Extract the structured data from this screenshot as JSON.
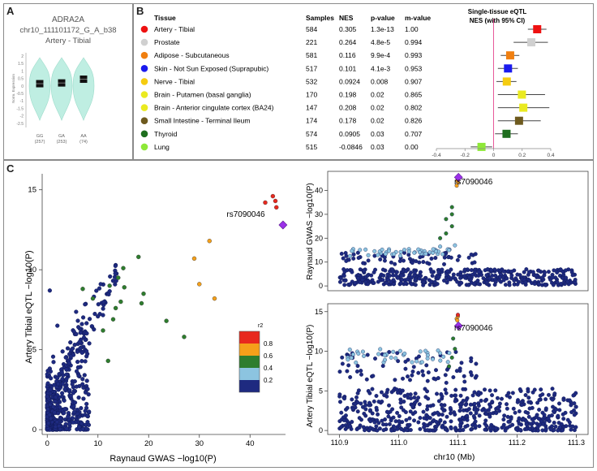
{
  "panels": {
    "a": "A",
    "b": "B",
    "c": "C"
  },
  "panel_a": {
    "gene": "ADRA2A",
    "variant": "chr10_111101172_G_A_b38",
    "tissue": "Artery - Tibial",
    "ylabel": "Norm. Expression",
    "yticks": [
      "2",
      "1.5",
      "1",
      "0.5",
      "0",
      "-0.5",
      "-1",
      "-1.5",
      "-2",
      "-2.5"
    ],
    "genotypes": [
      {
        "label": "GG",
        "n": "(257)",
        "median": 0.15
      },
      {
        "label": "GA",
        "n": "(253)",
        "median": 0.2
      },
      {
        "label": "AA",
        "n": "(74)",
        "median": 0.45
      }
    ]
  },
  "panel_b": {
    "headers": {
      "tissue": "Tissue",
      "samples": "Samples",
      "nes": "NES",
      "pvalue": "p-value",
      "mvalue": "m-value"
    },
    "forest_title_1": "Single-tissue eQTL",
    "forest_title_2": "NES (with 95% CI)",
    "x_ticks": [
      "-0.4",
      "-0.2",
      "0",
      "0.2",
      "0.4"
    ],
    "rows": [
      {
        "color": "#ee1111",
        "tissue": "Artery - Tibial",
        "samples": "584",
        "nes": "0.305",
        "pvalue": "1.3e-13",
        "mvalue": "1.00",
        "nes_val": 0.305,
        "ci": [
          0.24,
          0.37
        ]
      },
      {
        "color": "#d0d0d0",
        "tissue": "Prostate",
        "samples": "221",
        "nes": "0.264",
        "pvalue": "4.8e-5",
        "mvalue": "0.994",
        "nes_val": 0.264,
        "ci": [
          0.14,
          0.38
        ]
      },
      {
        "color": "#f07f10",
        "tissue": "Adipose - Subcutaneous",
        "samples": "581",
        "nes": "0.116",
        "pvalue": "9.9e-4",
        "mvalue": "0.993",
        "nes_val": 0.116,
        "ci": [
          0.05,
          0.18
        ]
      },
      {
        "color": "#1a1aee",
        "tissue": "Skin - Not Sun Exposed (Suprapubic)",
        "samples": "517",
        "nes": "0.101",
        "pvalue": "4.1e-3",
        "mvalue": "0.953",
        "nes_val": 0.101,
        "ci": [
          0.03,
          0.17
        ]
      },
      {
        "color": "#f5cc10",
        "tissue": "Nerve - Tibial",
        "samples": "532",
        "nes": "0.0924",
        "pvalue": "0.008",
        "mvalue": "0.907",
        "nes_val": 0.0924,
        "ci": [
          0.02,
          0.16
        ]
      },
      {
        "color": "#eaea20",
        "tissue": "Brain - Putamen (basal ganglia)",
        "samples": "170",
        "nes": "0.198",
        "pvalue": "0.02",
        "mvalue": "0.865",
        "nes_val": 0.198,
        "ci": [
          0.03,
          0.36
        ]
      },
      {
        "color": "#eaea20",
        "tissue": "Brain - Anterior cingulate cortex (BA24)",
        "samples": "147",
        "nes": "0.208",
        "pvalue": "0.02",
        "mvalue": "0.802",
        "nes_val": 0.208,
        "ci": [
          0.03,
          0.39
        ]
      },
      {
        "color": "#6e5a1e",
        "tissue": "Small Intestine - Terminal Ileum",
        "samples": "174",
        "nes": "0.178",
        "pvalue": "0.02",
        "mvalue": "0.826",
        "nes_val": 0.178,
        "ci": [
          0.03,
          0.33
        ]
      },
      {
        "color": "#1e6e1e",
        "tissue": "Thyroid",
        "samples": "574",
        "nes": "0.0905",
        "pvalue": "0.03",
        "mvalue": "0.707",
        "nes_val": 0.0905,
        "ci": [
          0.01,
          0.17
        ]
      },
      {
        "color": "#8ee838",
        "tissue": "Lung",
        "samples": "515",
        "nes": "-0.0846",
        "pvalue": "0.03",
        "mvalue": "0.00",
        "nes_val": -0.0846,
        "ci": [
          -0.16,
          -0.01
        ]
      }
    ]
  },
  "chart_data": [
    {
      "type": "scatter",
      "title": "",
      "xlabel": "Raynaud GWAS −log10(P)",
      "ylabel": "Artery Tibial eQTL −log10(P)",
      "xlim": [
        -1,
        47
      ],
      "ylim": [
        -0.3,
        16
      ],
      "xticks": [
        0,
        10,
        20,
        30,
        40
      ],
      "yticks": [
        0,
        5,
        10,
        15
      ],
      "lead_snp": "rs7090046",
      "lead_point": [
        46.5,
        12.8
      ],
      "colored_points": [
        {
          "x": 43,
          "y": 14.2,
          "r2": 0.9
        },
        {
          "x": 44.5,
          "y": 14.6,
          "r2": 0.9
        },
        {
          "x": 45,
          "y": 14.3,
          "r2": 0.9
        },
        {
          "x": 45.2,
          "y": 13.9,
          "r2": 0.9
        },
        {
          "x": 29,
          "y": 10.7,
          "r2": 0.7
        },
        {
          "x": 32,
          "y": 11.8,
          "r2": 0.7
        },
        {
          "x": 30,
          "y": 9.1,
          "r2": 0.7
        },
        {
          "x": 33,
          "y": 8.2,
          "r2": 0.7
        },
        {
          "x": 27,
          "y": 5.8,
          "r2": 0.5
        },
        {
          "x": 23.5,
          "y": 6.8,
          "r2": 0.5
        },
        {
          "x": 19,
          "y": 8.5,
          "r2": 0.5
        },
        {
          "x": 18,
          "y": 10.8,
          "r2": 0.5
        },
        {
          "x": 14,
          "y": 9.5,
          "r2": 0.5
        },
        {
          "x": 15,
          "y": 10.1,
          "r2": 0.5
        },
        {
          "x": 14.5,
          "y": 8.0,
          "r2": 0.5
        },
        {
          "x": 13.5,
          "y": 7.6,
          "r2": 0.5
        },
        {
          "x": 15.2,
          "y": 8.9,
          "r2": 0.5
        },
        {
          "x": 12.3,
          "y": 9.0,
          "r2": 0.5
        },
        {
          "x": 7,
          "y": 8.8,
          "r2": 0.5
        },
        {
          "x": 13,
          "y": 6.9,
          "r2": 0.5
        },
        {
          "x": 11,
          "y": 6.2,
          "r2": 0.5
        },
        {
          "x": 12,
          "y": 4.3,
          "r2": 0.5
        },
        {
          "x": 9,
          "y": 8.2,
          "r2": 0.5
        },
        {
          "x": 18.6,
          "y": 7.9,
          "r2": 0.5
        }
      ],
      "legend": {
        "title": "r2",
        "ticks": [
          "0.8",
          "0.6",
          "0.4",
          "0.2"
        ]
      }
    },
    {
      "type": "scatter",
      "title": "",
      "xlabel": "",
      "ylabel": "Raynaud GWAS −log10(P)",
      "xlim": [
        110.88,
        111.32
      ],
      "ylim": [
        -2,
        48
      ],
      "yticks": [
        0,
        10,
        20,
        30,
        40
      ],
      "lead_snp": "rs7090046",
      "lead_point": [
        111.101,
        45.5
      ]
    },
    {
      "type": "scatter",
      "title": "",
      "xlabel": "chr10 (Mb)",
      "ylabel": "Artery Tibial eQTL −log10(P)",
      "xlim": [
        110.88,
        111.32
      ],
      "ylim": [
        -0.5,
        16
      ],
      "xticks": [
        "110.9",
        "111.0",
        "111.1",
        "111.2",
        "111.3"
      ],
      "yticks": [
        0,
        5,
        10,
        15
      ],
      "lead_snp": "rs7090046",
      "lead_point": [
        111.101,
        13.2
      ]
    }
  ]
}
